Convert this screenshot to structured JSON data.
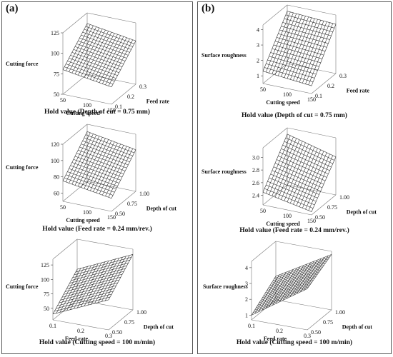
{
  "panels": [
    {
      "label": "(a)"
    },
    {
      "label": "(b)"
    }
  ],
  "chart_data": [
    {
      "type": "surface",
      "zlabel": "Cutting force",
      "xlabel": "Cutting speed",
      "ylabel": "Feed rate",
      "xticks": [
        "50",
        "100",
        "150"
      ],
      "yticks": [
        "0.1",
        "0.2",
        "0.3"
      ],
      "zticks": [
        "50",
        "75",
        "100",
        "125"
      ],
      "xlim": [
        50,
        150
      ],
      "ylim": [
        0.1,
        0.3
      ],
      "zlim": [
        50,
        125
      ],
      "corner_z": {
        "x_min_y_min": 80,
        "x_max_y_min": 71,
        "x_min_y_max": 112,
        "x_max_y_max": 103
      },
      "hold_value": "Hold value (Depth of cut =  0.75 mm)"
    },
    {
      "type": "surface",
      "zlabel": "Cutting force",
      "xlabel": "Cutting speed",
      "ylabel": "Depth of cut",
      "xticks": [
        "50",
        "100",
        "150"
      ],
      "yticks": [
        "0.50",
        "0.75",
        "1.00"
      ],
      "zticks": [
        "60",
        "80",
        "100",
        "120"
      ],
      "xlim": [
        50,
        150
      ],
      "ylim": [
        0.5,
        1.0
      ],
      "zlim": [
        50,
        120
      ],
      "corner_z": {
        "x_min_y_min": 75,
        "x_max_y_min": 66,
        "x_min_y_max": 111,
        "x_max_y_max": 101
      },
      "hold_value": "Hold value (Feed rate =  0.24 mm/rev.)"
    },
    {
      "type": "surface",
      "zlabel": "Cutting force",
      "xlabel": "Feed rate",
      "ylabel": "Depth of cut",
      "xticks": [
        "0.1",
        "0.2",
        "0.3"
      ],
      "yticks": [
        "0.50",
        "0.75",
        "1.00"
      ],
      "zticks": [
        "50",
        "75",
        "100",
        "125"
      ],
      "xlim": [
        0.1,
        0.3
      ],
      "ylim": [
        0.5,
        1.0
      ],
      "zlim": [
        30,
        135
      ],
      "corner_z": {
        "x_min_y_min": 40,
        "x_max_y_min": 82,
        "x_min_y_max": 83,
        "x_max_y_max": 126
      },
      "hold_value": "Hold value (Cutting speed = 100 m/min)"
    },
    {
      "type": "surface",
      "zlabel": "Surface roughness",
      "xlabel": "Cutting speed",
      "ylabel": "Feed rate",
      "xticks": [
        "50",
        "100",
        "150"
      ],
      "yticks": [
        "0.1",
        "0.2",
        "0.3"
      ],
      "zticks": [
        "1",
        "2",
        "3",
        "4"
      ],
      "xlim": [
        50,
        150
      ],
      "ylim": [
        0.1,
        0.3
      ],
      "zlim": [
        0.5,
        4.3
      ],
      "corner_z": {
        "x_min_y_min": 1.3,
        "x_max_y_min": 1.0,
        "x_min_y_max": 3.9,
        "x_max_y_max": 3.7
      },
      "hold_value": "Hold value (Depth of cut =  0.75 mm)"
    },
    {
      "type": "surface",
      "zlabel": "Surface roughness",
      "xlabel": "Cutting speed",
      "ylabel": "Depth of cut",
      "xticks": [
        "50",
        "100",
        "150"
      ],
      "yticks": [
        "0.50",
        "0.75",
        "1.00"
      ],
      "zticks": [
        "2.4",
        "2.6",
        "2.8",
        "3.0"
      ],
      "xlim": [
        50,
        150
      ],
      "ylim": [
        0.5,
        1.0
      ],
      "zlim": [
        2.25,
        3.15
      ],
      "corner_z": {
        "x_min_y_min": 2.45,
        "x_max_y_min": 2.3,
        "x_min_y_max": 3.05,
        "x_max_y_max": 2.85
      },
      "hold_value": "Hold value (Feed rate =  0.24 mm/rev.)"
    },
    {
      "type": "surface",
      "zlabel": "Surface roughness",
      "xlabel": "Feed rate",
      "ylabel": "Depth of cut",
      "xticks": [
        "0.1",
        "0.2",
        "0.3"
      ],
      "yticks": [
        "0.50",
        "0.75",
        "1.00"
      ],
      "zticks": [
        "1",
        "2",
        "3",
        "4"
      ],
      "xlim": [
        0.1,
        0.3
      ],
      "ylim": [
        0.5,
        1.0
      ],
      "zlim": [
        0.7,
        4.4
      ],
      "corner_z": {
        "x_min_y_min": 1.0,
        "x_max_y_min": 3.3,
        "x_min_y_max": 2.2,
        "x_max_y_max": 4.2
      },
      "hold_value": "Hold value (Cutting speed = 100 m/min)"
    }
  ]
}
